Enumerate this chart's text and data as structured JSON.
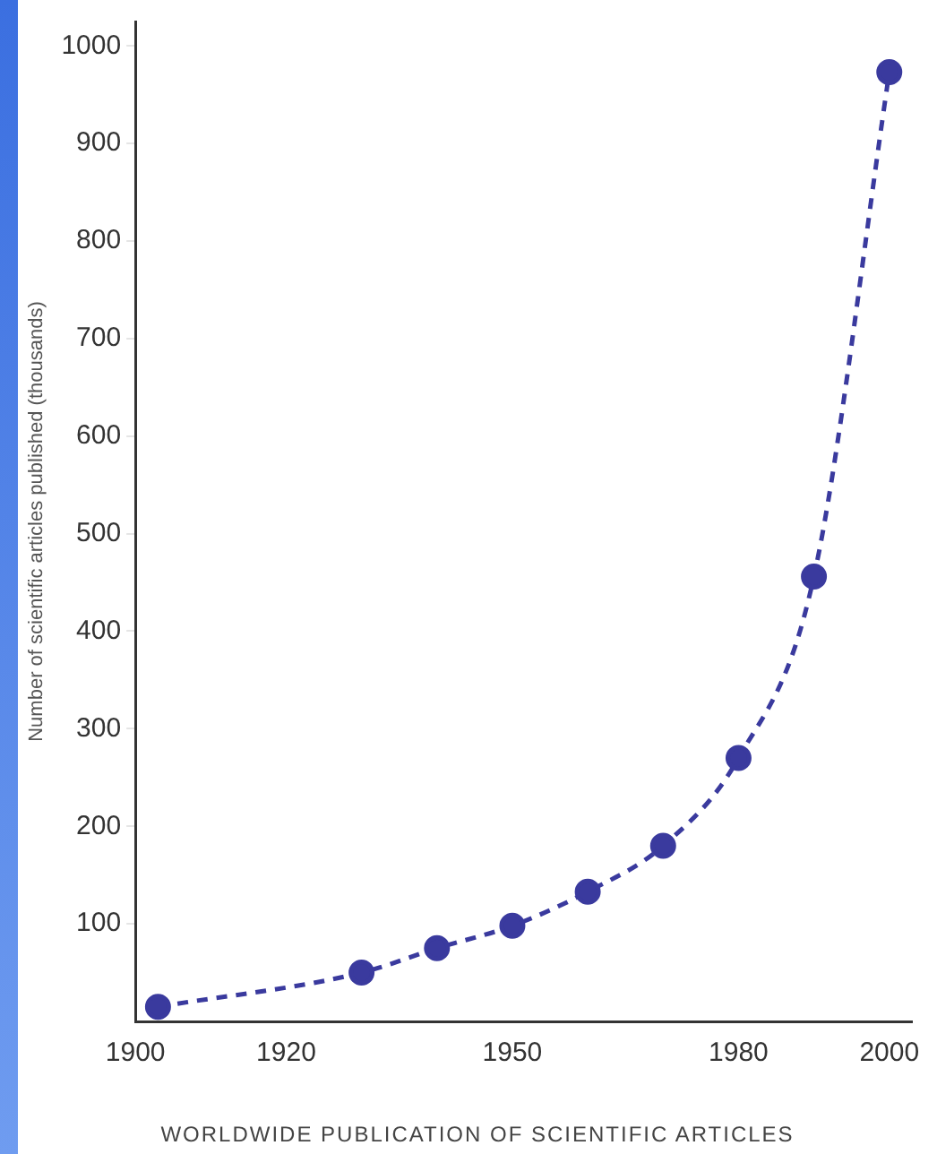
{
  "chart_data": {
    "type": "line",
    "title": "WORLDWIDE PUBLICATION OF SCIENTIFIC ARTICLES",
    "ylabel": "Number of scientific articles published (thousands)",
    "x": [
      1903,
      1930,
      1940,
      1950,
      1960,
      1970,
      1980,
      1990,
      2000
    ],
    "series": [
      {
        "color": "#3a3a9e",
        "values": [
          15,
          50,
          75,
          98,
          133,
          180,
          270,
          456,
          973
        ]
      }
    ],
    "xlim": [
      1900,
      2003
    ],
    "xticks": [
      1900,
      1920,
      1950,
      1980,
      2000
    ],
    "ylim": [
      0,
      1025
    ],
    "yticks": [
      100,
      200,
      300,
      400,
      500,
      600,
      700,
      800,
      900,
      1000
    ],
    "grid": false,
    "legend": false,
    "marker": "circle",
    "line_style": "dashed"
  }
}
